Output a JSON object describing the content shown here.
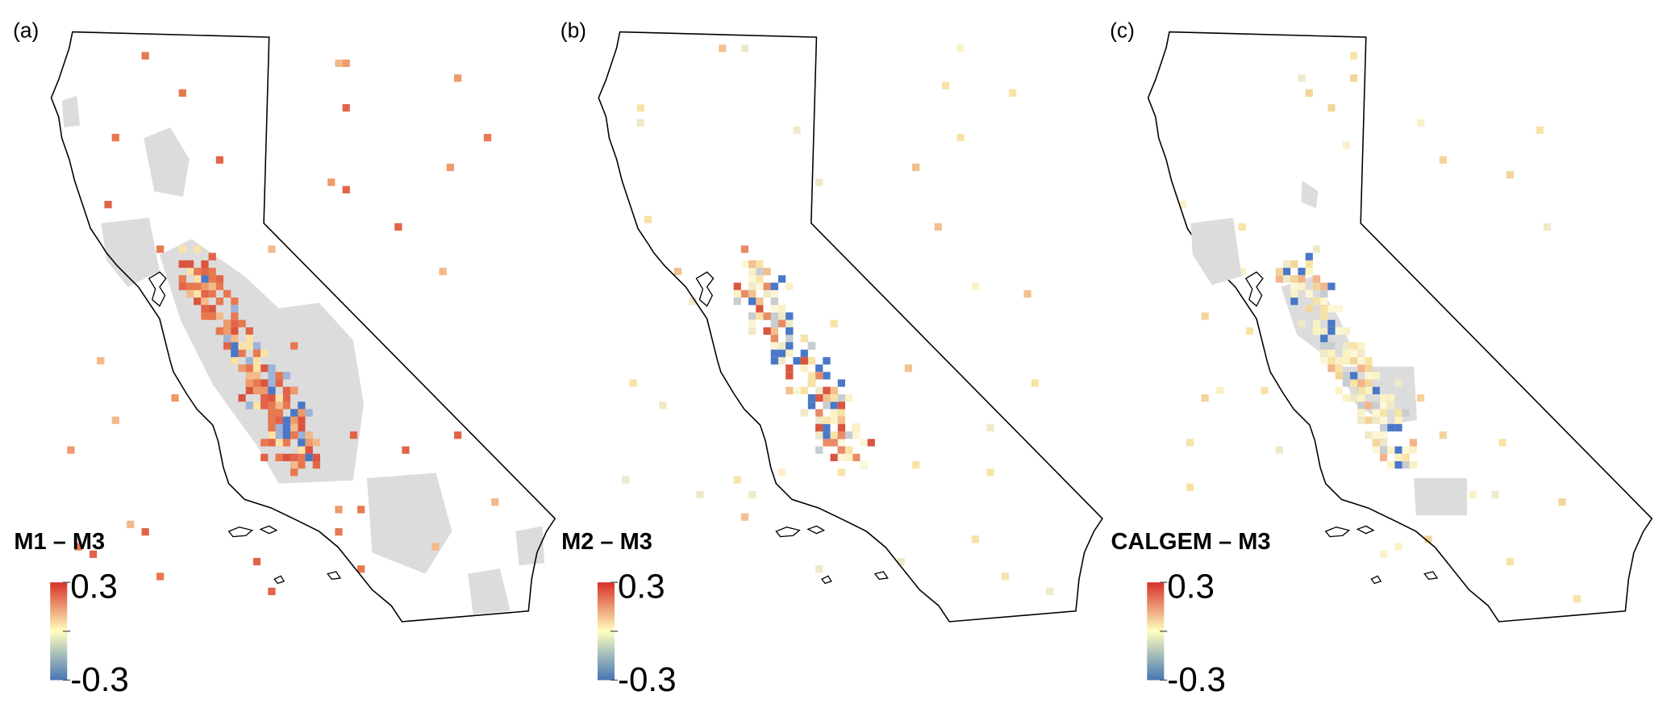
{
  "panels": [
    {
      "label": "(a)",
      "legend_title": "M1 – M3",
      "colorbar": {
        "lim": [
          -0.3,
          0.3
        ],
        "ticks": [
          -0.3,
          0.3
        ],
        "colors": [
          "#4575b4",
          "#ffffbf",
          "#d73027"
        ]
      }
    },
    {
      "label": "(b)",
      "legend_title": "M2 – M3",
      "colorbar": {
        "lim": [
          -0.3,
          0.3
        ],
        "ticks": [
          -0.3,
          0.3
        ],
        "colors": [
          "#4575b4",
          "#ffffbf",
          "#d73027"
        ]
      }
    },
    {
      "label": "(c)",
      "legend_title": "CALGEM – M3",
      "colorbar": {
        "lim": [
          -0.3,
          0.3
        ],
        "ticks": [
          -0.3,
          0.3
        ],
        "colors": [
          "#4575b4",
          "#ffffbf",
          "#d73027"
        ]
      }
    }
  ]
}
